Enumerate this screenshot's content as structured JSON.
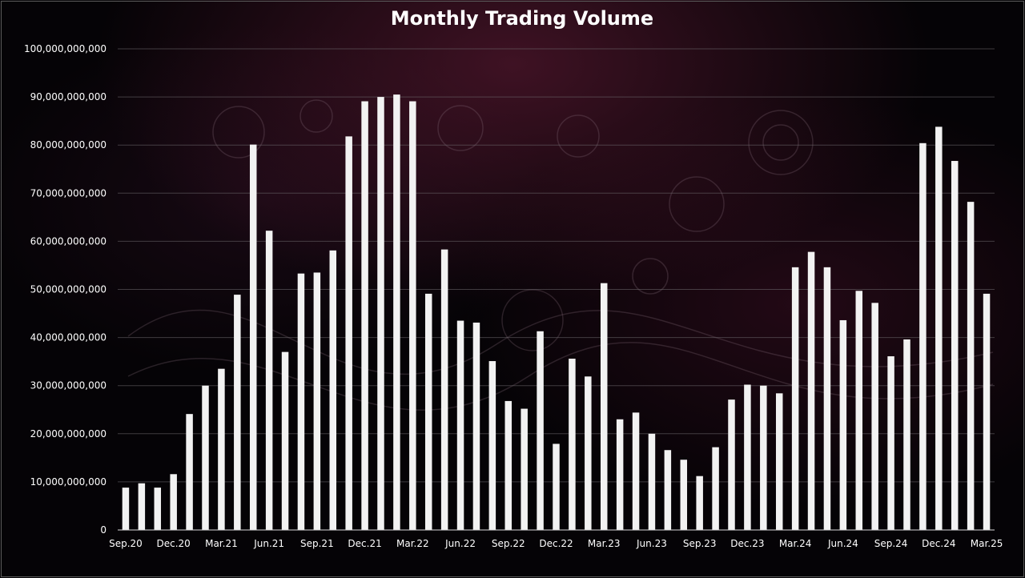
{
  "chart_data": {
    "type": "bar",
    "title": "Monthly Trading Volume",
    "xlabel": "",
    "ylabel": "",
    "ylim": [
      0,
      100000000000
    ],
    "yticks": [
      0,
      10000000000,
      20000000000,
      30000000000,
      40000000000,
      50000000000,
      60000000000,
      70000000000,
      80000000000,
      90000000000,
      100000000000
    ],
    "ytick_labels": [
      "0",
      "10,000,000,000",
      "20,000,000,000",
      "30,000,000,000",
      "40,000,000,000",
      "50,000,000,000",
      "60,000,000,000",
      "70,000,000,000",
      "80,000,000,000",
      "90,000,000,000",
      "100,000,000,000"
    ],
    "grid": true,
    "legend": "none",
    "bar_color": "#f2f2f2",
    "background_color": "#050306",
    "categories": [
      "Sep.20",
      "Oct.20",
      "Nov.20",
      "Dec.20",
      "Jan.21",
      "Feb.21",
      "Mar.21",
      "Apr.21",
      "May.21",
      "Jun.21",
      "Jul.21",
      "Aug.21",
      "Sep.21",
      "Oct.21",
      "Nov.21",
      "Dec.21",
      "Jan.22",
      "Feb.22",
      "Mar.22",
      "Apr.22",
      "May.22",
      "Jun.22",
      "Jul.22",
      "Aug.22",
      "Sep.22",
      "Oct.22",
      "Nov.22",
      "Dec.22",
      "Jan.23",
      "Feb.23",
      "Mar.23",
      "Apr.23",
      "May.23",
      "Jun.23",
      "Jul.23",
      "Aug.23",
      "Sep.23",
      "Oct.23",
      "Nov.23",
      "Dec.23",
      "Jan.24",
      "Feb.24",
      "Mar.24",
      "Apr.24",
      "May.24",
      "Jun.24",
      "Jul.24",
      "Aug.24",
      "Sep.24",
      "Oct.24",
      "Nov.24",
      "Dec.24",
      "Jan.25",
      "Feb.25",
      "Mar.25"
    ],
    "shown_xtick_labels": [
      "Sep.20",
      "Dec.20",
      "Mar.21",
      "Jun.21",
      "Sep.21",
      "Dec.21",
      "Mar.22",
      "Jun.22",
      "Sep.22",
      "Dec.22",
      "Mar.23",
      "Jun.23",
      "Sep.23",
      "Dec.23",
      "Mar.24",
      "Jun.24",
      "Sep.24",
      "Dec.24",
      "Mar.25"
    ],
    "values": [
      8800000000,
      9700000000,
      8800000000,
      11600000000,
      24100000000,
      30000000000,
      33500000000,
      48900000000,
      80100000000,
      62200000000,
      37000000000,
      53300000000,
      53500000000,
      58100000000,
      81800000000,
      89100000000,
      90000000000,
      90500000000,
      89100000000,
      49100000000,
      58300000000,
      43500000000,
      43100000000,
      35100000000,
      26800000000,
      25200000000,
      41300000000,
      17900000000,
      35600000000,
      31900000000,
      51300000000,
      23000000000,
      24400000000,
      20000000000,
      16600000000,
      14600000000,
      11200000000,
      17200000000,
      27100000000,
      30200000000,
      30000000000,
      28400000000,
      54600000000,
      57800000000,
      54600000000,
      43600000000,
      49700000000,
      47200000000,
      36100000000,
      39600000000,
      80400000000,
      83800000000,
      76700000000,
      68200000000,
      49100000000
    ]
  }
}
